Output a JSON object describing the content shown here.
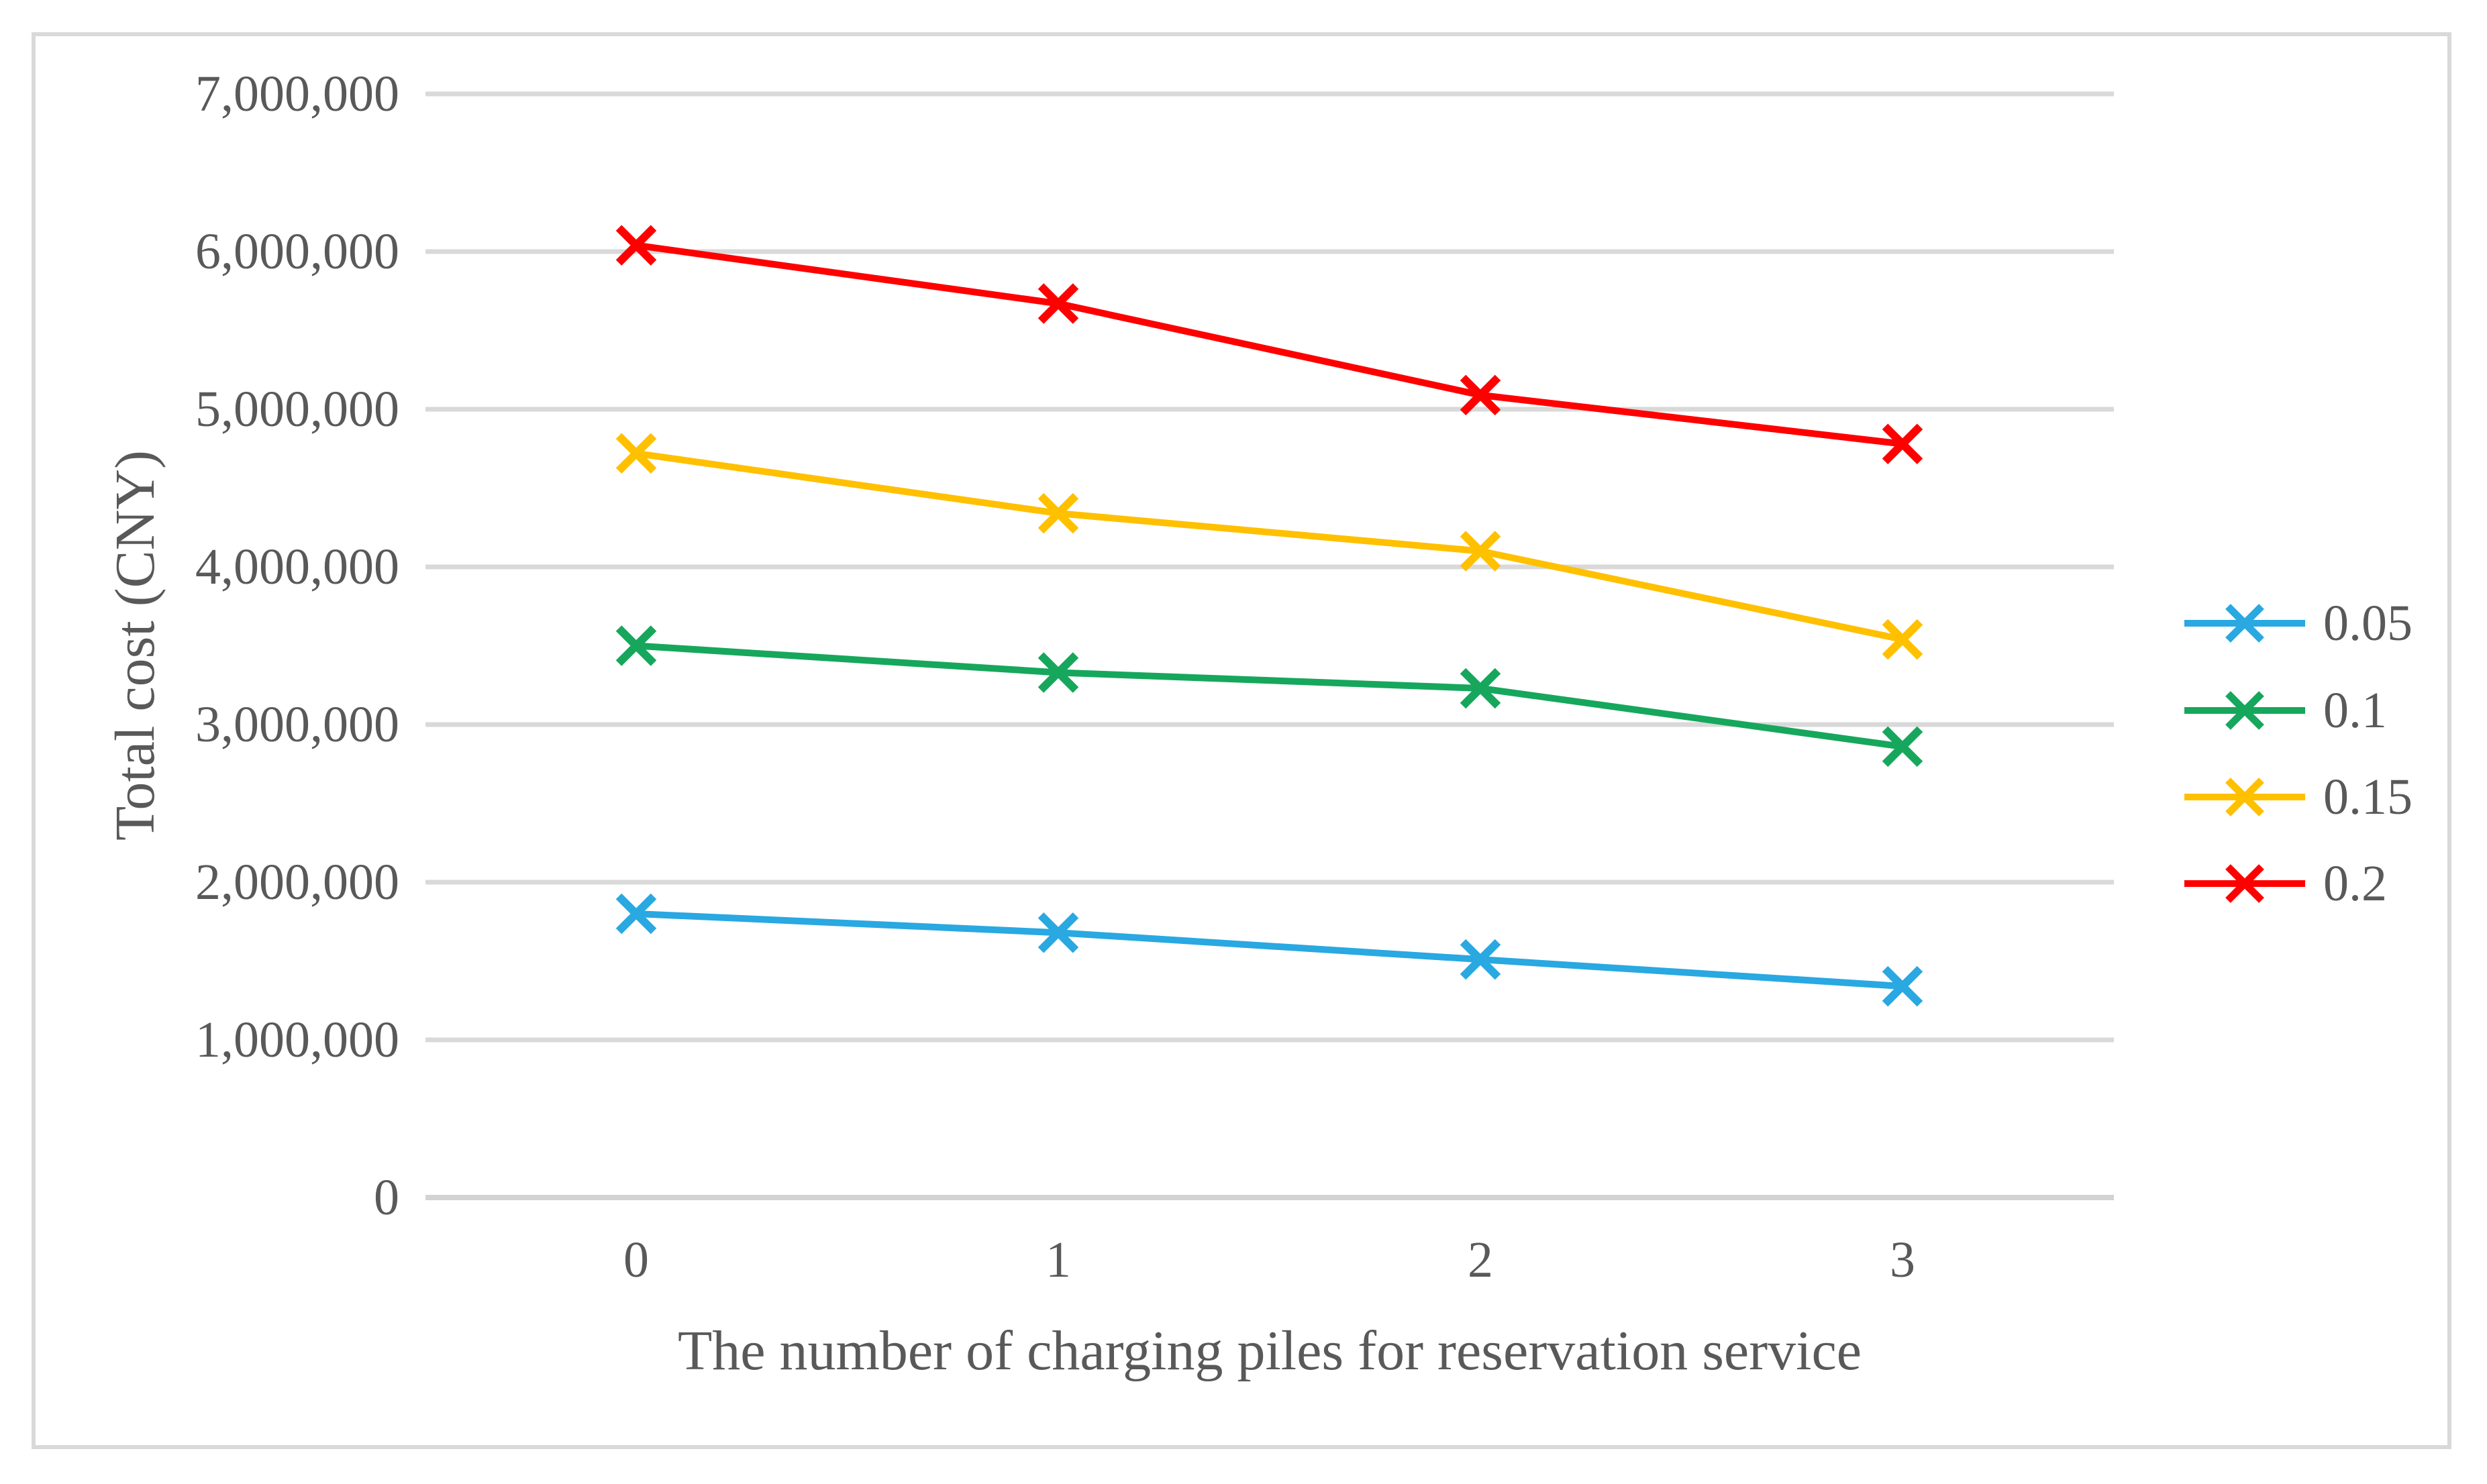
{
  "figure": {
    "background": "#ffffff",
    "border_color": "#d9d9d9",
    "gridline_color": "#d9d9d9",
    "axisline_color": "#d3d3d3",
    "text_color": "#595959"
  },
  "chart_data": {
    "type": "line",
    "title": "",
    "xlabel": "The number of charging piles for reservation service",
    "ylabel": "Total cost (CNY)",
    "categories": [
      "0",
      "1",
      "2",
      "3"
    ],
    "series": [
      {
        "name": "0.05",
        "color": "#29A8E1",
        "marker": "x",
        "values": [
          1800000,
          1680000,
          1510000,
          1340000
        ]
      },
      {
        "name": "0.1",
        "color": "#16A75C",
        "marker": "x",
        "values": [
          3500000,
          3330000,
          3230000,
          2860000
        ]
      },
      {
        "name": "0.15",
        "color": "#FFC000",
        "marker": "x",
        "values": [
          4720000,
          4340000,
          4100000,
          3540000
        ]
      },
      {
        "name": "0.2",
        "color": "#FF0000",
        "marker": "x",
        "values": [
          6040000,
          5670000,
          5090000,
          4780000
        ]
      }
    ],
    "ylim": [
      0,
      7000000
    ],
    "ytick_step": 1000000,
    "ytick_labels": [
      "0",
      "1,000,000",
      "2,000,000",
      "3,000,000",
      "4,000,000",
      "5,000,000",
      "6,000,000",
      "7,000,000"
    ],
    "grid": "horizontal",
    "legend_position": "right",
    "legend_entries": [
      "0.05",
      "0.1",
      "0.15",
      "0.2"
    ]
  }
}
